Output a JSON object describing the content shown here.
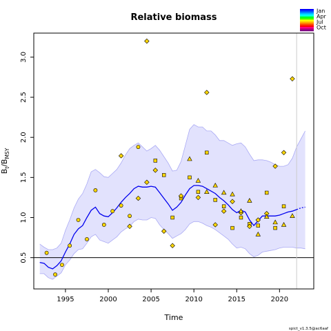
{
  "chart_data": {
    "type": "line",
    "title": "Relative biomass",
    "xlabel": "Time",
    "ylabel": "B_t/B_MSY",
    "ylabel_main": "B",
    "ylabel_sub": "t",
    "ylabel_sep": "/B",
    "ylabel_sub2": "MSY",
    "xlim": [
      1991.3,
      2024.0
    ],
    "ylim": [
      0.11,
      3.3
    ],
    "xticks": [
      1995,
      2000,
      2005,
      2010,
      2015,
      2020
    ],
    "yticks": [
      0.5,
      1.0,
      1.5,
      2.0,
      2.5,
      3.0
    ],
    "xtick_labels": [
      "1995",
      "2000",
      "2005",
      "2010",
      "2015",
      "2020"
    ],
    "ytick_labels": [
      "0.5",
      "1.0",
      "1.5",
      "2.0",
      "2.5",
      "3.0"
    ],
    "reference_line": 0.5,
    "forecast_start": 2022.0,
    "colors": {
      "median": "#0000ee",
      "ci_fill": "#e2e2fd",
      "ci_line": "#aaaaf4",
      "points": "#ffd700",
      "vline": "#cccccc"
    },
    "series": [
      {
        "role": "estimate",
        "x": [
          1992.0,
          1992.5,
          1993.0,
          1993.5,
          1994.0,
          1994.5,
          1995.0,
          1995.5,
          1996.0,
          1996.5,
          1997.0,
          1997.5,
          1998.0,
          1998.5,
          1999.0,
          1999.5,
          2000.0,
          2000.5,
          2001.0,
          2001.5,
          2002.0,
          2002.5,
          2003.0,
          2003.5,
          2004.0,
          2004.5,
          2005.0,
          2005.5,
          2006.0,
          2006.5,
          2007.0,
          2007.5,
          2008.0,
          2008.5,
          2009.0,
          2009.5,
          2010.0,
          2010.5,
          2011.0,
          2011.5,
          2012.0,
          2012.5,
          2013.0,
          2013.5,
          2014.0,
          2014.5,
          2015.0,
          2015.5,
          2016.0,
          2016.5,
          2017.0,
          2017.5,
          2018.0,
          2018.5,
          2019.0,
          2019.5,
          2020.0,
          2020.5,
          2021.0,
          2021.5,
          2022.0
        ],
        "y": [
          0.44,
          0.43,
          0.38,
          0.36,
          0.4,
          0.46,
          0.57,
          0.67,
          0.79,
          0.86,
          0.9,
          1.0,
          1.09,
          1.13,
          1.05,
          1.02,
          1.01,
          1.06,
          1.12,
          1.19,
          1.25,
          1.3,
          1.36,
          1.39,
          1.38,
          1.38,
          1.39,
          1.38,
          1.31,
          1.24,
          1.17,
          1.09,
          1.13,
          1.19,
          1.28,
          1.36,
          1.4,
          1.4,
          1.39,
          1.36,
          1.33,
          1.3,
          1.25,
          1.21,
          1.16,
          1.1,
          1.06,
          1.09,
          1.07,
          0.97,
          0.9,
          0.96,
          1.02,
          1.02,
          1.02,
          1.02,
          1.03,
          1.05,
          1.07,
          1.08,
          1.1
        ]
      },
      {
        "role": "forecast",
        "x": [
          2022.0,
          2022.5,
          2023.0
        ],
        "y": [
          1.1,
          1.12,
          1.13
        ]
      },
      {
        "role": "ci_upper",
        "x": [
          1992.0,
          1992.5,
          1993.0,
          1993.5,
          1994.0,
          1994.5,
          1995.0,
          1995.5,
          1996.0,
          1996.5,
          1997.0,
          1997.5,
          1998.0,
          1998.5,
          1999.0,
          1999.5,
          2000.0,
          2000.5,
          2001.0,
          2001.5,
          2002.0,
          2002.5,
          2003.0,
          2003.5,
          2004.0,
          2004.5,
          2005.0,
          2005.5,
          2006.0,
          2006.5,
          2007.0,
          2007.5,
          2008.0,
          2008.5,
          2009.0,
          2009.5,
          2010.0,
          2010.5,
          2011.0,
          2011.5,
          2012.0,
          2012.5,
          2013.0,
          2013.5,
          2014.0,
          2014.5,
          2015.0,
          2015.5,
          2016.0,
          2016.5,
          2017.0,
          2017.5,
          2018.0,
          2018.5,
          2019.0,
          2019.5,
          2020.0,
          2020.5,
          2021.0,
          2021.5,
          2022.0,
          2022.5,
          2023.0
        ],
        "y": [
          0.67,
          0.63,
          0.6,
          0.6,
          0.62,
          0.68,
          0.84,
          0.97,
          1.12,
          1.23,
          1.3,
          1.42,
          1.57,
          1.6,
          1.56,
          1.51,
          1.5,
          1.55,
          1.6,
          1.68,
          1.78,
          1.86,
          1.9,
          1.93,
          1.88,
          1.83,
          1.86,
          1.9,
          1.84,
          1.76,
          1.68,
          1.58,
          1.59,
          1.7,
          1.9,
          2.1,
          2.16,
          2.13,
          2.13,
          2.08,
          2.08,
          2.03,
          1.96,
          1.96,
          1.93,
          1.9,
          1.92,
          1.93,
          1.88,
          1.79,
          1.71,
          1.72,
          1.72,
          1.71,
          1.69,
          1.66,
          1.64,
          1.64,
          1.66,
          1.74,
          1.88,
          1.98,
          2.08
        ]
      },
      {
        "role": "ci_lower",
        "x": [
          1992.0,
          1992.5,
          1993.0,
          1993.5,
          1994.0,
          1994.5,
          1995.0,
          1995.5,
          1996.0,
          1996.5,
          1997.0,
          1997.5,
          1998.0,
          1998.5,
          1999.0,
          1999.5,
          2000.0,
          2000.5,
          2001.0,
          2001.5,
          2002.0,
          2002.5,
          2003.0,
          2003.5,
          2004.0,
          2004.5,
          2005.0,
          2005.5,
          2006.0,
          2006.5,
          2007.0,
          2007.5,
          2008.0,
          2008.5,
          2009.0,
          2009.5,
          2010.0,
          2010.5,
          2011.0,
          2011.5,
          2012.0,
          2012.5,
          2013.0,
          2013.5,
          2014.0,
          2014.5,
          2015.0,
          2015.5,
          2016.0,
          2016.5,
          2017.0,
          2017.5,
          2018.0,
          2018.5,
          2019.0,
          2019.5,
          2020.0,
          2020.5,
          2021.0,
          2021.5,
          2022.0,
          2022.5,
          2023.0
        ],
        "y": [
          0.3,
          0.3,
          0.25,
          0.23,
          0.27,
          0.31,
          0.41,
          0.47,
          0.55,
          0.6,
          0.61,
          0.68,
          0.76,
          0.79,
          0.72,
          0.7,
          0.68,
          0.72,
          0.76,
          0.82,
          0.86,
          0.89,
          0.95,
          0.98,
          0.97,
          0.97,
          1.0,
          0.99,
          0.91,
          0.85,
          0.8,
          0.74,
          0.77,
          0.8,
          0.85,
          0.92,
          0.95,
          0.95,
          0.93,
          0.9,
          0.88,
          0.85,
          0.81,
          0.77,
          0.73,
          0.67,
          0.62,
          0.63,
          0.61,
          0.55,
          0.51,
          0.53,
          0.57,
          0.58,
          0.59,
          0.6,
          0.62,
          0.63,
          0.63,
          0.63,
          0.62,
          0.62,
          0.61
        ]
      }
    ],
    "observations": [
      {
        "index": 1,
        "marker": "circle",
        "points": [
          [
            1992.8,
            0.56
          ],
          [
            1993.8,
            0.29
          ],
          [
            1994.6,
            0.41
          ],
          [
            1995.5,
            0.65
          ],
          [
            1996.5,
            0.97
          ],
          [
            1997.5,
            0.73
          ],
          [
            1998.5,
            1.34
          ],
          [
            1999.5,
            0.91
          ],
          [
            2000.5,
            1.08
          ],
          [
            2001.5,
            1.15
          ],
          [
            2002.5,
            1.02
          ],
          [
            2003.5,
            1.88
          ]
        ]
      },
      {
        "index": 2,
        "marker": "square",
        "points": [
          [
            2005.5,
            1.71
          ],
          [
            2006.5,
            1.53
          ],
          [
            2007.5,
            1.0
          ],
          [
            2008.5,
            1.24
          ],
          [
            2009.5,
            1.5
          ],
          [
            2010.5,
            1.32
          ],
          [
            2011.5,
            1.81
          ],
          [
            2012.5,
            1.22
          ],
          [
            2013.5,
            1.14
          ],
          [
            2014.5,
            0.87
          ],
          [
            2015.5,
            1.0
          ],
          [
            2016.5,
            0.92
          ],
          [
            2017.5,
            0.9
          ],
          [
            2018.5,
            1.31
          ],
          [
            2019.5,
            0.87
          ],
          [
            2020.5,
            1.14
          ]
        ]
      },
      {
        "index": 3,
        "marker": "diamond",
        "points": [
          [
            2001.5,
            1.77
          ],
          [
            2002.5,
            0.89
          ],
          [
            2003.5,
            1.24
          ],
          [
            2004.5,
            3.2
          ],
          [
            2004.5,
            1.44
          ],
          [
            2005.5,
            1.59
          ],
          [
            2006.5,
            0.83
          ],
          [
            2007.5,
            0.65
          ],
          [
            2008.5,
            1.27
          ],
          [
            2010.5,
            1.25
          ],
          [
            2011.5,
            2.56
          ],
          [
            2012.5,
            0.91
          ],
          [
            2013.5,
            1.08
          ],
          [
            2014.5,
            1.2
          ],
          [
            2015.5,
            1.06
          ],
          [
            2016.5,
            0.89
          ],
          [
            2017.5,
            0.97
          ],
          [
            2018.5,
            1.05
          ],
          [
            2019.5,
            1.64
          ],
          [
            2020.5,
            1.81
          ],
          [
            2021.5,
            2.73
          ]
        ]
      },
      {
        "index": 4,
        "marker": "triangle",
        "points": [
          [
            2009.5,
            1.73
          ],
          [
            2010.5,
            1.46
          ],
          [
            2011.5,
            1.32
          ],
          [
            2012.5,
            1.4
          ],
          [
            2013.5,
            1.31
          ],
          [
            2014.5,
            1.29
          ],
          [
            2015.5,
            1.08
          ],
          [
            2016.5,
            1.21
          ],
          [
            2017.5,
            0.79
          ],
          [
            2018.5,
            1.01
          ],
          [
            2019.5,
            0.94
          ],
          [
            2020.5,
            0.91
          ],
          [
            2021.5,
            1.02
          ]
        ]
      }
    ],
    "legend": {
      "position": "top-right",
      "labels": [
        "Jan",
        "Apr",
        "Jul",
        "Oct"
      ],
      "colors": [
        "#0000ff",
        "#0040ff",
        "#0080ff",
        "#00bfff",
        "#00ffff",
        "#00ff80",
        "#00ff00",
        "#80ff00",
        "#ffff00",
        "#ffbf00",
        "#ff8000",
        "#ff4000",
        "#ff0000",
        "#ff0080",
        "#bf0080",
        "#800080"
      ]
    },
    "footer": "spict_v1.3.5@ac6aaf"
  }
}
